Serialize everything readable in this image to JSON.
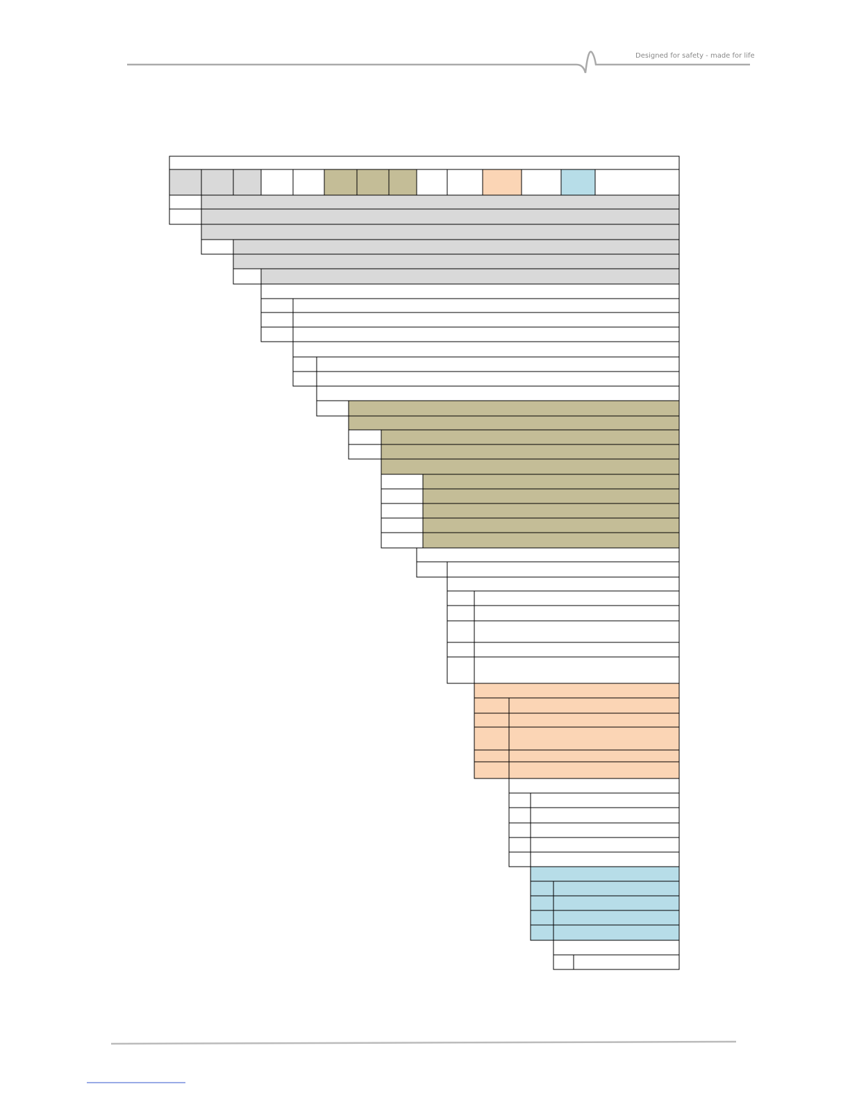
{
  "header": {
    "tagline": "Designed for safety - made for life"
  }
}
